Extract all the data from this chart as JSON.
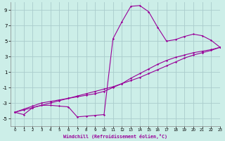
{
  "xlabel": "Windchill (Refroidissement éolien,°C)",
  "background_color": "#cceee8",
  "grid_color": "#aacccc",
  "line_color": "#990099",
  "x_hours": [
    0,
    1,
    2,
    3,
    4,
    5,
    6,
    7,
    8,
    9,
    10,
    11,
    12,
    13,
    14,
    15,
    16,
    17,
    18,
    19,
    20,
    21,
    22,
    23
  ],
  "y_windchill": [
    -4.2,
    -4.5,
    -3.6,
    -3.3,
    -3.3,
    -3.4,
    -3.5,
    -4.8,
    -4.7,
    -4.6,
    -4.5,
    5.3,
    7.5,
    9.5,
    9.6,
    8.8,
    6.8,
    5.0,
    5.2,
    5.6,
    5.9,
    5.7,
    5.1,
    4.2
  ],
  "y_temp_line": [
    -4.2,
    -3.9,
    -3.6,
    -3.3,
    -3.0,
    -2.7,
    -2.4,
    -2.1,
    -1.8,
    -1.5,
    -1.2,
    -0.9,
    -0.5,
    -0.1,
    0.3,
    0.8,
    1.3,
    1.8,
    2.3,
    2.8,
    3.2,
    3.5,
    3.8,
    4.2
  ],
  "y_mid_line": [
    -4.2,
    -3.8,
    -3.4,
    -3.0,
    -2.8,
    -2.6,
    -2.4,
    -2.2,
    -2.0,
    -1.8,
    -1.5,
    -1.0,
    -0.5,
    0.2,
    0.8,
    1.4,
    2.0,
    2.5,
    2.9,
    3.2,
    3.5,
    3.7,
    3.9,
    4.2
  ],
  "ylim": [
    -6,
    10
  ],
  "xlim": [
    -0.5,
    23
  ],
  "yticks": [
    -5,
    -3,
    -1,
    1,
    3,
    5,
    7,
    9
  ],
  "xticks": [
    0,
    1,
    2,
    3,
    4,
    5,
    6,
    7,
    8,
    9,
    10,
    11,
    12,
    13,
    14,
    15,
    16,
    17,
    18,
    19,
    20,
    21,
    22,
    23
  ]
}
